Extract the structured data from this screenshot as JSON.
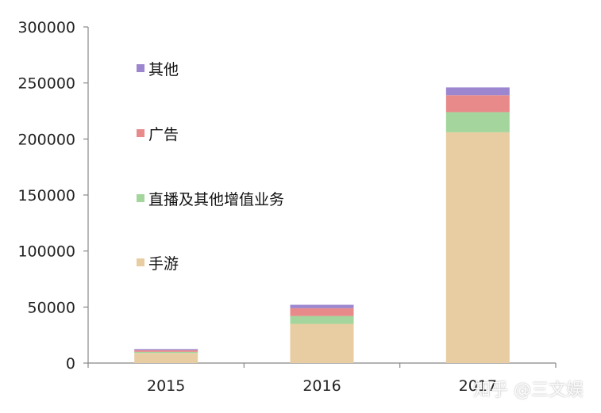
{
  "chart_data": {
    "type": "bar",
    "stacked": true,
    "categories": [
      "2015",
      "2016",
      "2017"
    ],
    "series": [
      {
        "name": "手游",
        "color": "#e8cda2",
        "values": [
          9000,
          35000,
          206000
        ]
      },
      {
        "name": "直播及其他增值业务",
        "color": "#a3d59c",
        "values": [
          1000,
          7000,
          18000
        ]
      },
      {
        "name": "广告",
        "color": "#e88a8a",
        "values": [
          1500,
          7000,
          15000
        ]
      },
      {
        "name": "其他",
        "color": "#9b86cf",
        "values": [
          1000,
          3000,
          7000
        ]
      }
    ],
    "legend_order": [
      "其他",
      "广告",
      "直播及其他增值业务",
      "手游"
    ],
    "ylim": [
      0,
      300000
    ],
    "yticks": [
      "0",
      "50000",
      "100000",
      "150000",
      "200000",
      "250000",
      "300000"
    ],
    "legend_position": "left",
    "grid": false,
    "title": "",
    "xlabel": "",
    "ylabel": ""
  },
  "watermark": "知乎 @三文娱"
}
